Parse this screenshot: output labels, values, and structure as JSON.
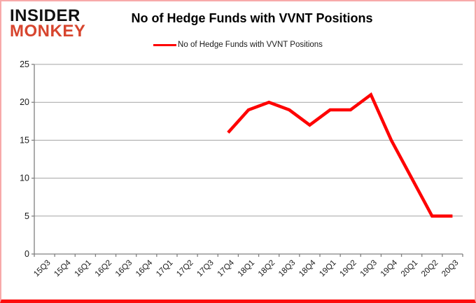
{
  "logo": {
    "line1": "INSIDER",
    "line2": "MONKEY"
  },
  "header": {
    "title": "No of Hedge Funds with VVNT Positions"
  },
  "legend": {
    "label": "No of Hedge Funds with VVNT Positions"
  },
  "chart_data": {
    "type": "line",
    "title": "No of Hedge Funds with VVNT Positions",
    "xlabel": "",
    "ylabel": "",
    "categories": [
      "15Q3",
      "15Q4",
      "16Q1",
      "16Q2",
      "16Q3",
      "16Q4",
      "17Q1",
      "17Q2",
      "17Q3",
      "17Q4",
      "18Q1",
      "18Q2",
      "18Q3",
      "18Q4",
      "19Q1",
      "19Q2",
      "19Q3",
      "19Q4",
      "20Q1",
      "20Q2",
      "20Q3"
    ],
    "series": [
      {
        "name": "No of Hedge Funds with VVNT Positions",
        "color": "#fe0000",
        "values": [
          null,
          null,
          null,
          null,
          null,
          null,
          null,
          null,
          null,
          16,
          19,
          20,
          19,
          17,
          19,
          19,
          21,
          15,
          10,
          5,
          5
        ]
      }
    ],
    "ylim": [
      0,
      25
    ],
    "yticks": [
      0,
      5,
      10,
      15,
      20,
      25
    ],
    "grid": true,
    "legend_position": "top"
  },
  "colors": {
    "line": "#fe0000",
    "logo_red": "#d7452e",
    "gridline": "#a3a3a3",
    "axis": "#808080",
    "border_sides": "#f7a9a9",
    "border_bottom": "#fd0d0d"
  }
}
